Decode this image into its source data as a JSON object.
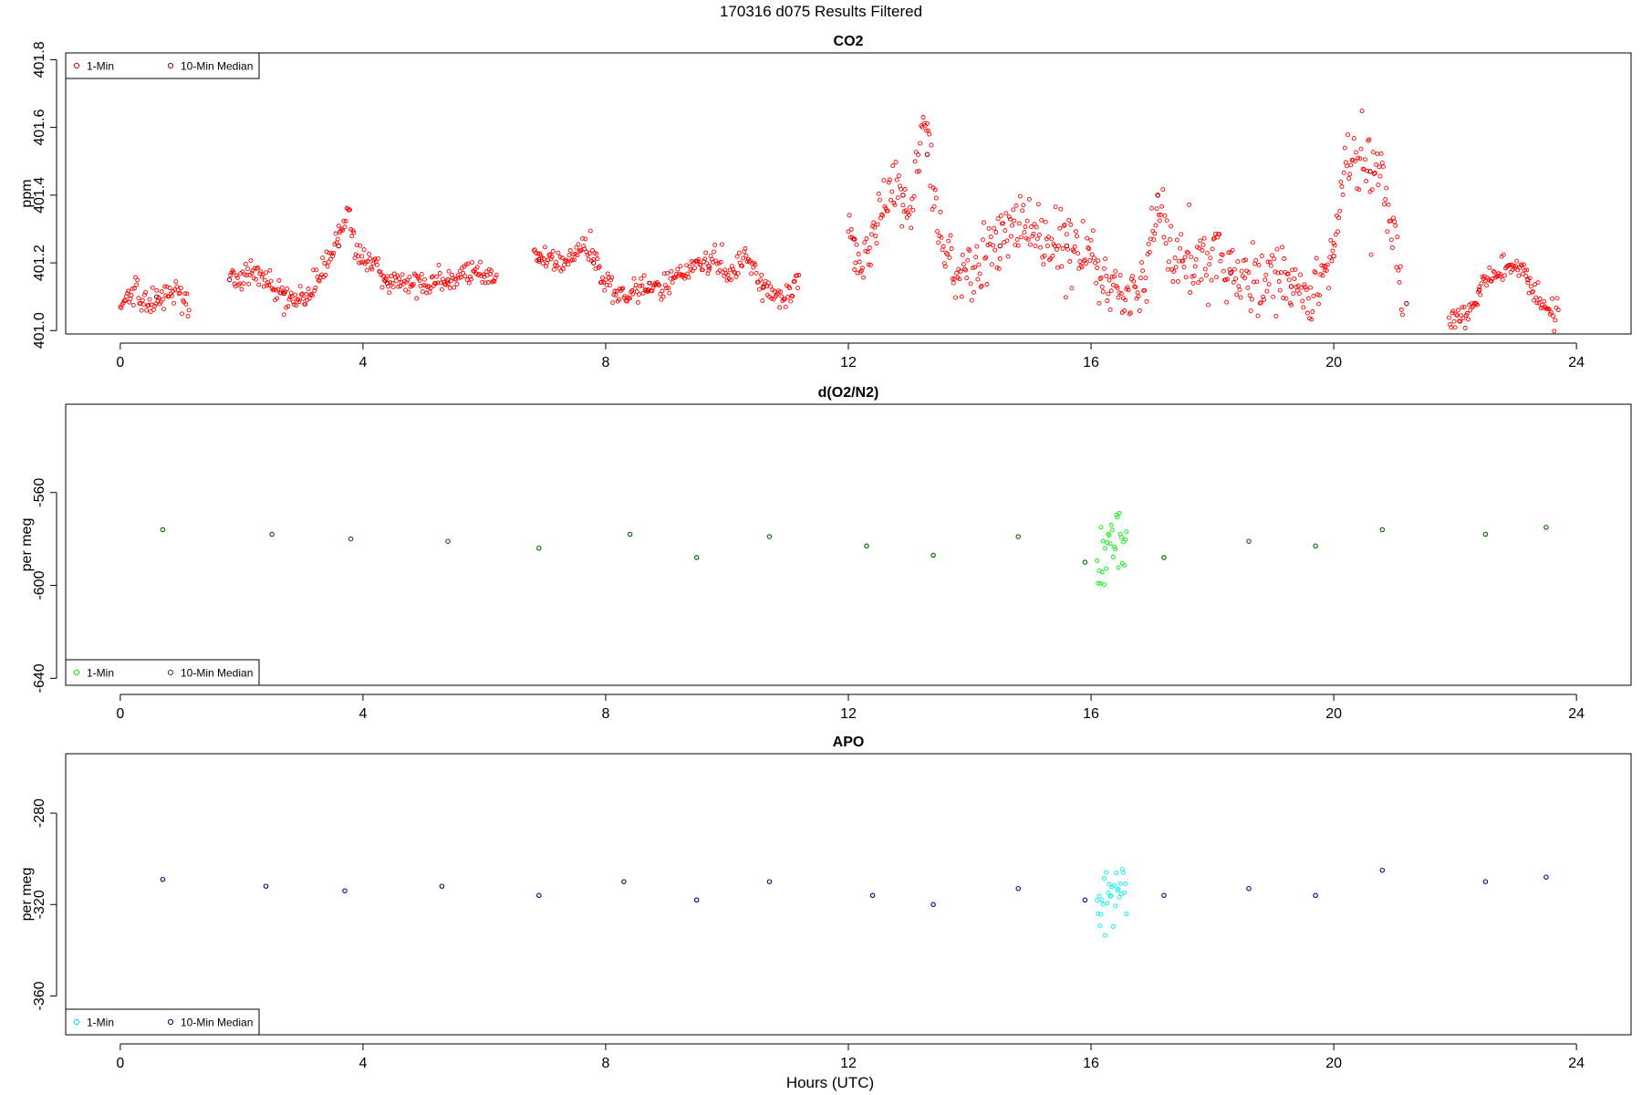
{
  "figure": {
    "title": "170316   d075   Results Filtered",
    "xlabel": "Hours (UTC)"
  },
  "chart_data": [
    {
      "type": "scatter",
      "title": "CO2",
      "ylabel": "ppm",
      "xlim": [
        -0.9,
        24.9
      ],
      "ylim": [
        400.99,
        401.82
      ],
      "xticks": [
        0,
        4,
        8,
        12,
        16,
        20,
        24
      ],
      "yticks": [
        401.0,
        401.2,
        401.4,
        401.6,
        401.8
      ],
      "ytick_labels": [
        "401.0",
        "401.2",
        "401.4",
        "401.6",
        "401.8"
      ],
      "legend_position": "top-left",
      "series": [
        {
          "name": "1-Min",
          "color": "#ff0000"
        },
        {
          "name": "10-Min Median",
          "color": "#b00000"
        }
      ],
      "profile": [
        [
          0.0,
          401.08
        ],
        [
          0.2,
          401.12
        ],
        [
          0.4,
          401.08
        ],
        [
          0.7,
          401.11
        ],
        [
          1.0,
          401.12
        ],
        [
          1.15,
          401.06
        ],
        [
          1.8,
          401.15
        ],
        [
          2.2,
          401.17
        ],
        [
          2.5,
          401.13
        ],
        [
          2.9,
          401.08
        ],
        [
          3.1,
          401.1
        ],
        [
          3.4,
          401.2
        ],
        [
          3.6,
          401.28
        ],
        [
          3.75,
          401.35
        ],
        [
          3.9,
          401.23
        ],
        [
          4.2,
          401.2
        ],
        [
          4.4,
          401.13
        ],
        [
          4.8,
          401.15
        ],
        [
          5.0,
          401.14
        ],
        [
          5.5,
          401.15
        ],
        [
          5.9,
          401.18
        ],
        [
          6.2,
          401.15
        ],
        [
          6.8,
          401.2
        ],
        [
          7.0,
          401.22
        ],
        [
          7.3,
          401.2
        ],
        [
          7.6,
          401.25
        ],
        [
          7.9,
          401.18
        ],
        [
          8.2,
          401.1
        ],
        [
          8.6,
          401.13
        ],
        [
          8.9,
          401.12
        ],
        [
          9.2,
          401.17
        ],
        [
          9.5,
          401.2
        ],
        [
          9.8,
          401.22
        ],
        [
          10.0,
          401.16
        ],
        [
          10.3,
          401.22
        ],
        [
          10.6,
          401.14
        ],
        [
          10.9,
          401.08
        ],
        [
          11.2,
          401.17
        ],
        [
          12.0,
          401.3
        ],
        [
          12.2,
          401.17
        ],
        [
          12.5,
          401.35
        ],
        [
          12.8,
          401.45
        ],
        [
          13.0,
          401.35
        ],
        [
          13.3,
          401.65
        ],
        [
          13.5,
          401.25
        ],
        [
          13.8,
          401.18
        ],
        [
          14.2,
          401.2
        ],
        [
          14.5,
          401.27
        ],
        [
          14.8,
          401.3
        ],
        [
          15.0,
          401.33
        ],
        [
          15.3,
          401.25
        ],
        [
          15.6,
          401.25
        ],
        [
          15.9,
          401.25
        ],
        [
          16.1,
          401.18
        ],
        [
          16.6,
          401.08
        ],
        [
          16.9,
          401.15
        ],
        [
          17.1,
          401.38
        ],
        [
          17.4,
          401.2
        ],
        [
          17.7,
          401.18
        ],
        [
          18.0,
          401.22
        ],
        [
          18.3,
          401.17
        ],
        [
          18.7,
          401.15
        ],
        [
          19.0,
          401.15
        ],
        [
          19.3,
          401.14
        ],
        [
          19.6,
          401.1
        ],
        [
          19.85,
          401.17
        ],
        [
          20.0,
          401.22
        ],
        [
          20.2,
          401.5
        ],
        [
          20.5,
          401.5
        ],
        [
          20.8,
          401.45
        ],
        [
          21.0,
          401.25
        ],
        [
          21.15,
          401.05
        ],
        [
          21.9,
          401.04
        ],
        [
          22.2,
          401.04
        ],
        [
          22.5,
          401.15
        ],
        [
          22.8,
          401.17
        ],
        [
          23.1,
          401.18
        ],
        [
          23.4,
          401.08
        ],
        [
          23.7,
          401.05
        ]
      ],
      "noise": [
        0.035,
        0.09
      ],
      "medians": [
        0.6,
        401.1,
        1.8,
        401.15,
        2.7,
        401.11,
        3.6,
        401.25,
        4.4,
        401.14,
        5.4,
        401.15,
        6.9,
        401.21,
        7.8,
        401.2,
        8.7,
        401.12,
        9.7,
        401.19,
        10.6,
        401.13,
        12.1,
        401.27,
        12.9,
        401.4,
        13.3,
        401.52,
        14.5,
        401.25,
        15.6,
        401.25,
        17.1,
        401.4,
        18.3,
        401.17,
        19.3,
        401.13,
        20.0,
        401.22,
        20.6,
        401.47,
        21.2,
        401.08,
        22.4,
        401.12,
        23.2,
        401.15
      ]
    },
    {
      "type": "scatter",
      "title": "d(O2/N2)",
      "ylabel": "per meg",
      "xlim": [
        -0.9,
        24.9
      ],
      "ylim": [
        -643,
        -522
      ],
      "xticks": [
        0,
        4,
        8,
        12,
        16,
        20,
        24
      ],
      "yticks": [
        -640,
        -600,
        -560
      ],
      "ytick_labels": [
        "-640",
        "-600",
        "-560"
      ],
      "legend_position": "bottom-left",
      "series": [
        {
          "name": "1-Min",
          "color": "#00ee00"
        },
        {
          "name": "10-Min Median",
          "color": "#006400"
        }
      ],
      "profile": [
        [
          0.0,
          -578
        ],
        [
          0.6,
          -576
        ],
        [
          1.15,
          -579
        ],
        [
          1.8,
          -581
        ],
        [
          3.0,
          -578
        ],
        [
          4.0,
          -582
        ],
        [
          5.0,
          -580
        ],
        [
          6.2,
          -582
        ],
        [
          6.8,
          -580
        ],
        [
          8.0,
          -577
        ],
        [
          8.8,
          -583
        ],
        [
          9.6,
          -585
        ],
        [
          10.2,
          -579
        ],
        [
          11.2,
          -580
        ],
        [
          12.0,
          -582
        ],
        [
          13.0,
          -588
        ],
        [
          14.0,
          -582
        ],
        [
          15.0,
          -582
        ],
        [
          16.1,
          -588
        ],
        [
          16.6,
          -585
        ],
        [
          17.5,
          -582
        ],
        [
          18.5,
          -580
        ],
        [
          19.5,
          -580
        ],
        [
          20.5,
          -577
        ],
        [
          21.2,
          -585
        ],
        [
          21.9,
          -580
        ],
        [
          23.7,
          -575
        ]
      ],
      "noise": [
        6,
        16
      ],
      "medians": [
        0.7,
        -576,
        2.5,
        -578,
        3.8,
        -580,
        5.4,
        -581,
        6.9,
        -584,
        8.4,
        -578,
        9.5,
        -588,
        10.7,
        -579,
        12.3,
        -583,
        13.4,
        -587,
        14.8,
        -579,
        15.9,
        -590,
        17.2,
        -588,
        18.6,
        -581,
        19.7,
        -583,
        20.8,
        -576,
        22.5,
        -578,
        23.5,
        -575
      ]
    },
    {
      "type": "scatter",
      "title": "APO",
      "ylabel": "per meg",
      "xlim": [
        -0.9,
        24.9
      ],
      "ylim": [
        -377,
        -254
      ],
      "xticks": [
        0,
        4,
        8,
        12,
        16,
        20,
        24
      ],
      "yticks": [
        -360,
        -320,
        -280
      ],
      "ytick_labels": [
        "-360",
        "-320",
        "-280"
      ],
      "legend_position": "bottom-left",
      "series": [
        {
          "name": "1-Min",
          "color": "#00eeee"
        },
        {
          "name": "10-Min Median",
          "color": "#000080"
        }
      ],
      "profile": [
        [
          0.0,
          -311
        ],
        [
          0.6,
          -308
        ],
        [
          1.15,
          -313
        ],
        [
          1.8,
          -313
        ],
        [
          3.0,
          -311
        ],
        [
          4.0,
          -315
        ],
        [
          5.0,
          -313
        ],
        [
          6.2,
          -315
        ],
        [
          6.8,
          -312
        ],
        [
          8.0,
          -309
        ],
        [
          8.8,
          -315
        ],
        [
          9.6,
          -318
        ],
        [
          10.2,
          -311
        ],
        [
          11.2,
          -311
        ],
        [
          12.0,
          -315
        ],
        [
          13.0,
          -320
        ],
        [
          14.0,
          -313
        ],
        [
          15.0,
          -313
        ],
        [
          16.1,
          -318
        ],
        [
          16.6,
          -318
        ],
        [
          17.5,
          -314
        ],
        [
          18.5,
          -312
        ],
        [
          19.5,
          -312
        ],
        [
          20.5,
          -306
        ],
        [
          21.2,
          -316
        ],
        [
          21.9,
          -311
        ],
        [
          23.7,
          -308
        ]
      ],
      "noise": [
        6,
        16
      ],
      "medians": [
        0.7,
        -309,
        2.4,
        -312,
        3.7,
        -314,
        5.3,
        -312,
        6.9,
        -316,
        8.3,
        -310,
        9.5,
        -318,
        10.7,
        -310,
        12.4,
        -316,
        13.4,
        -320,
        14.8,
        -313,
        15.9,
        -318,
        17.2,
        -316,
        18.6,
        -313,
        19.7,
        -316,
        20.8,
        -305,
        22.5,
        -310,
        23.5,
        -308
      ]
    }
  ]
}
